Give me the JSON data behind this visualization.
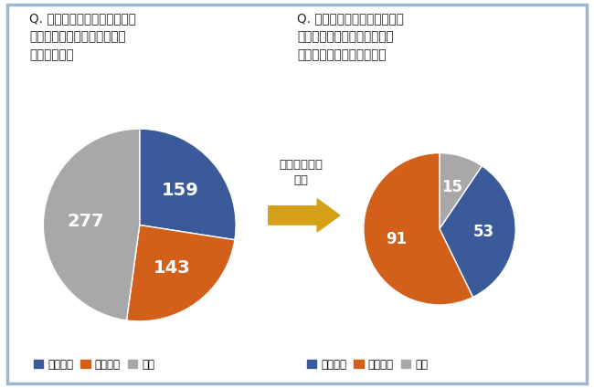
{
  "title1": "Q. 敷地内の緑地に絶滅危惧種\nなどの希少種は生息・生育し\nていますか？",
  "title2": "Q. 敷地内の生物多様性の保全\nのための何らかの指針や計画\nは明文化されていますか？",
  "pie1_values": [
    159,
    143,
    277
  ],
  "pie1_labels": [
    "159",
    "143",
    "277"
  ],
  "pie1_colors": [
    "#3B5A9A",
    "#D2601A",
    "#A8A8A8"
  ],
  "pie1_legend": [
    "生息あり",
    "生息なし",
    "不明"
  ],
  "pie2_values_ordered": [
    15,
    53,
    91
  ],
  "pie2_labels_ordered": [
    "15",
    "53",
    "91"
  ],
  "pie2_colors_ordered": [
    "#A8A8A8",
    "#3B5A9A",
    "#D2601A"
  ],
  "pie2_legend": [
    "指針あり",
    "指針なし",
    "不明"
  ],
  "pie2_legend_colors": [
    "#3B5A9A",
    "#D2601A",
    "#A8A8A8"
  ],
  "arrow_label": "「生息あり」\nの内",
  "arrow_color": "#D4A017",
  "background_color": "#FFFFFF",
  "border_color": "#9BB7D4",
  "text_color_dark": "#222222"
}
